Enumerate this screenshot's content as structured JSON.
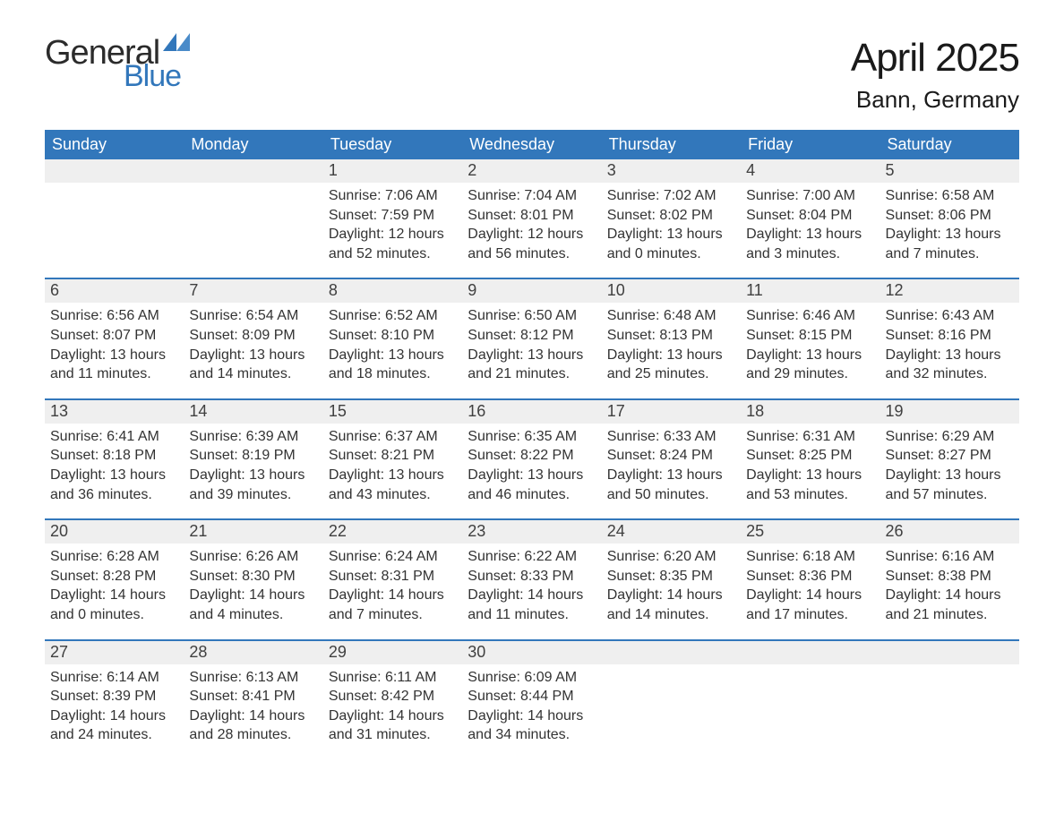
{
  "logo": {
    "text1": "General",
    "text2": "Blue",
    "color_dark": "#2b2b2b",
    "color_blue": "#3277bb"
  },
  "title": "April 2025",
  "location": "Bann, Germany",
  "colors": {
    "header_bg": "#3277bb",
    "header_text": "#ffffff",
    "daynum_bg": "#efefef",
    "text": "#333333",
    "row_border": "#3277bb",
    "page_bg": "#ffffff"
  },
  "fonts": {
    "title_size": 44,
    "location_size": 26,
    "th_size": 18,
    "daynum_size": 18,
    "body_size": 16
  },
  "weekdays": [
    "Sunday",
    "Monday",
    "Tuesday",
    "Wednesday",
    "Thursday",
    "Friday",
    "Saturday"
  ],
  "weeks": [
    [
      null,
      null,
      {
        "n": "1",
        "sr": "Sunrise: 7:06 AM",
        "ss": "Sunset: 7:59 PM",
        "dl": "Daylight: 12 hours and 52 minutes."
      },
      {
        "n": "2",
        "sr": "Sunrise: 7:04 AM",
        "ss": "Sunset: 8:01 PM",
        "dl": "Daylight: 12 hours and 56 minutes."
      },
      {
        "n": "3",
        "sr": "Sunrise: 7:02 AM",
        "ss": "Sunset: 8:02 PM",
        "dl": "Daylight: 13 hours and 0 minutes."
      },
      {
        "n": "4",
        "sr": "Sunrise: 7:00 AM",
        "ss": "Sunset: 8:04 PM",
        "dl": "Daylight: 13 hours and 3 minutes."
      },
      {
        "n": "5",
        "sr": "Sunrise: 6:58 AM",
        "ss": "Sunset: 8:06 PM",
        "dl": "Daylight: 13 hours and 7 minutes."
      }
    ],
    [
      {
        "n": "6",
        "sr": "Sunrise: 6:56 AM",
        "ss": "Sunset: 8:07 PM",
        "dl": "Daylight: 13 hours and 11 minutes."
      },
      {
        "n": "7",
        "sr": "Sunrise: 6:54 AM",
        "ss": "Sunset: 8:09 PM",
        "dl": "Daylight: 13 hours and 14 minutes."
      },
      {
        "n": "8",
        "sr": "Sunrise: 6:52 AM",
        "ss": "Sunset: 8:10 PM",
        "dl": "Daylight: 13 hours and 18 minutes."
      },
      {
        "n": "9",
        "sr": "Sunrise: 6:50 AM",
        "ss": "Sunset: 8:12 PM",
        "dl": "Daylight: 13 hours and 21 minutes."
      },
      {
        "n": "10",
        "sr": "Sunrise: 6:48 AM",
        "ss": "Sunset: 8:13 PM",
        "dl": "Daylight: 13 hours and 25 minutes."
      },
      {
        "n": "11",
        "sr": "Sunrise: 6:46 AM",
        "ss": "Sunset: 8:15 PM",
        "dl": "Daylight: 13 hours and 29 minutes."
      },
      {
        "n": "12",
        "sr": "Sunrise: 6:43 AM",
        "ss": "Sunset: 8:16 PM",
        "dl": "Daylight: 13 hours and 32 minutes."
      }
    ],
    [
      {
        "n": "13",
        "sr": "Sunrise: 6:41 AM",
        "ss": "Sunset: 8:18 PM",
        "dl": "Daylight: 13 hours and 36 minutes."
      },
      {
        "n": "14",
        "sr": "Sunrise: 6:39 AM",
        "ss": "Sunset: 8:19 PM",
        "dl": "Daylight: 13 hours and 39 minutes."
      },
      {
        "n": "15",
        "sr": "Sunrise: 6:37 AM",
        "ss": "Sunset: 8:21 PM",
        "dl": "Daylight: 13 hours and 43 minutes."
      },
      {
        "n": "16",
        "sr": "Sunrise: 6:35 AM",
        "ss": "Sunset: 8:22 PM",
        "dl": "Daylight: 13 hours and 46 minutes."
      },
      {
        "n": "17",
        "sr": "Sunrise: 6:33 AM",
        "ss": "Sunset: 8:24 PM",
        "dl": "Daylight: 13 hours and 50 minutes."
      },
      {
        "n": "18",
        "sr": "Sunrise: 6:31 AM",
        "ss": "Sunset: 8:25 PM",
        "dl": "Daylight: 13 hours and 53 minutes."
      },
      {
        "n": "19",
        "sr": "Sunrise: 6:29 AM",
        "ss": "Sunset: 8:27 PM",
        "dl": "Daylight: 13 hours and 57 minutes."
      }
    ],
    [
      {
        "n": "20",
        "sr": "Sunrise: 6:28 AM",
        "ss": "Sunset: 8:28 PM",
        "dl": "Daylight: 14 hours and 0 minutes."
      },
      {
        "n": "21",
        "sr": "Sunrise: 6:26 AM",
        "ss": "Sunset: 8:30 PM",
        "dl": "Daylight: 14 hours and 4 minutes."
      },
      {
        "n": "22",
        "sr": "Sunrise: 6:24 AM",
        "ss": "Sunset: 8:31 PM",
        "dl": "Daylight: 14 hours and 7 minutes."
      },
      {
        "n": "23",
        "sr": "Sunrise: 6:22 AM",
        "ss": "Sunset: 8:33 PM",
        "dl": "Daylight: 14 hours and 11 minutes."
      },
      {
        "n": "24",
        "sr": "Sunrise: 6:20 AM",
        "ss": "Sunset: 8:35 PM",
        "dl": "Daylight: 14 hours and 14 minutes."
      },
      {
        "n": "25",
        "sr": "Sunrise: 6:18 AM",
        "ss": "Sunset: 8:36 PM",
        "dl": "Daylight: 14 hours and 17 minutes."
      },
      {
        "n": "26",
        "sr": "Sunrise: 6:16 AM",
        "ss": "Sunset: 8:38 PM",
        "dl": "Daylight: 14 hours and 21 minutes."
      }
    ],
    [
      {
        "n": "27",
        "sr": "Sunrise: 6:14 AM",
        "ss": "Sunset: 8:39 PM",
        "dl": "Daylight: 14 hours and 24 minutes."
      },
      {
        "n": "28",
        "sr": "Sunrise: 6:13 AM",
        "ss": "Sunset: 8:41 PM",
        "dl": "Daylight: 14 hours and 28 minutes."
      },
      {
        "n": "29",
        "sr": "Sunrise: 6:11 AM",
        "ss": "Sunset: 8:42 PM",
        "dl": "Daylight: 14 hours and 31 minutes."
      },
      {
        "n": "30",
        "sr": "Sunrise: 6:09 AM",
        "ss": "Sunset: 8:44 PM",
        "dl": "Daylight: 14 hours and 34 minutes."
      },
      null,
      null,
      null
    ]
  ]
}
